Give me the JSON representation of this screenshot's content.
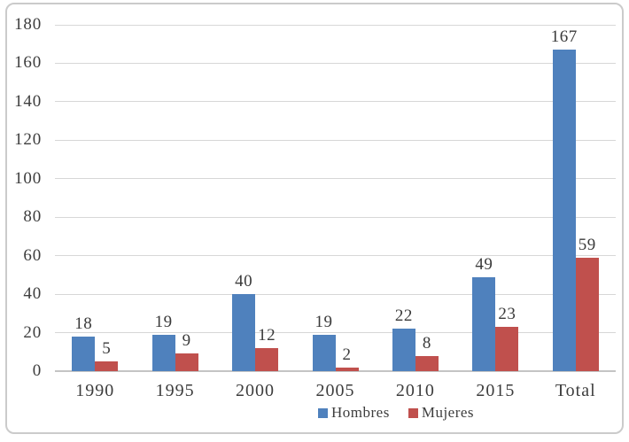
{
  "chart_data": {
    "type": "bar",
    "categories": [
      "1990",
      "1995",
      "2000",
      "2005",
      "2010",
      "2015",
      "Total"
    ],
    "series": [
      {
        "name": "Hombres",
        "color": "#4F81BD",
        "values": [
          18,
          19,
          40,
          19,
          22,
          49,
          167
        ]
      },
      {
        "name": "Mujeres",
        "color": "#C0504D",
        "values": [
          5,
          9,
          12,
          2,
          8,
          23,
          59
        ]
      }
    ],
    "title": "",
    "xlabel": "",
    "ylabel": "",
    "ylim": [
      0,
      180
    ],
    "ytick_step": 20,
    "yticks": [
      0,
      20,
      40,
      60,
      80,
      100,
      120,
      140,
      160,
      180
    ],
    "grid": true,
    "data_labels": true,
    "legend_position": "bottom"
  },
  "colors": {
    "bar_hombres": "#4F81BD",
    "bar_mujeres": "#C0504D",
    "gridline": "#D7D7D7",
    "axis_line": "#C4C4C4",
    "text": "#3D3D3D",
    "border": "#CBCBCB",
    "background": "#FFFFFF"
  }
}
